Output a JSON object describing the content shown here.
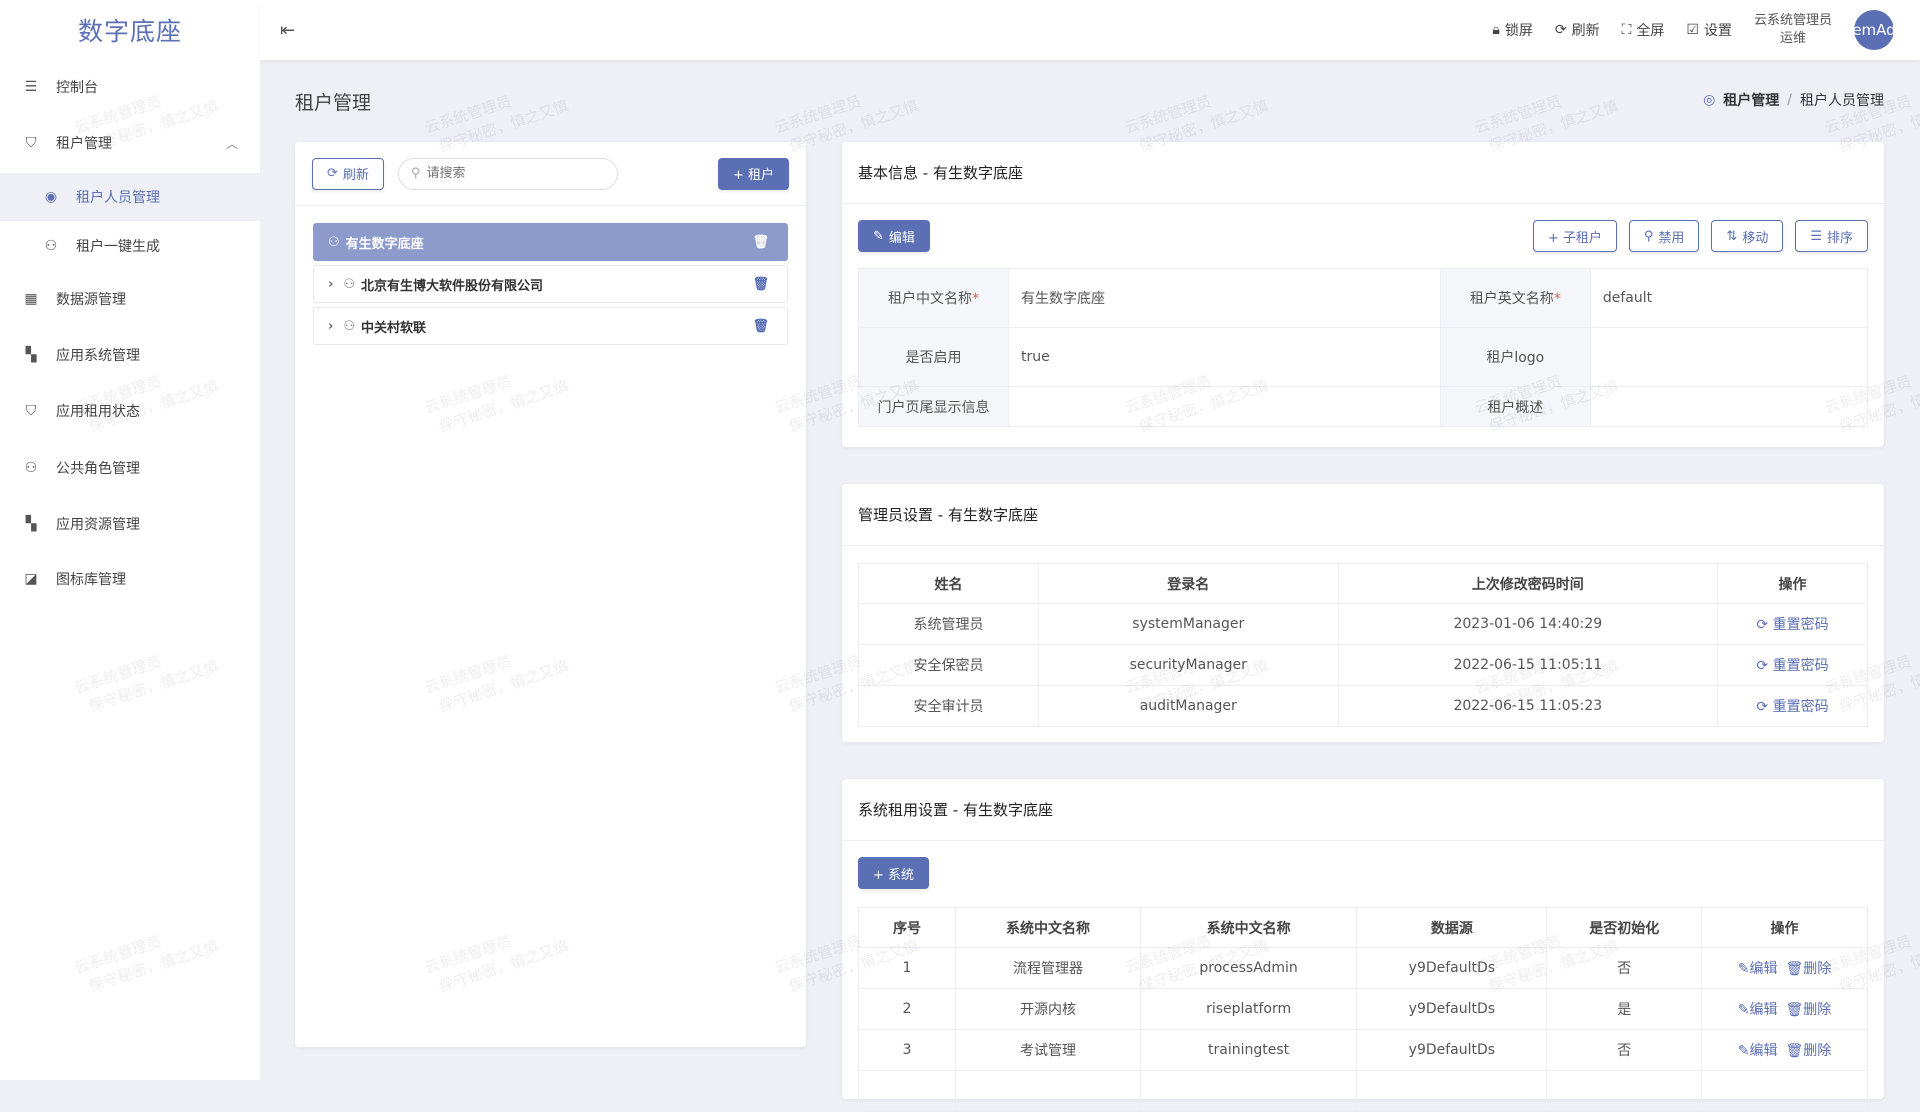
{
  "app": {
    "logo": "数字底座"
  },
  "sidebar": {
    "items": [
      {
        "label": "控制台",
        "icon": "sliders-icon"
      },
      {
        "label": "租户管理",
        "icon": "shield-user-icon"
      },
      {
        "label": "租户人员管理",
        "icon": "user-circle-icon"
      },
      {
        "label": "租户一键生成",
        "icon": "user-gear-icon"
      },
      {
        "label": "数据源管理",
        "icon": "database-icon"
      },
      {
        "label": "应用系统管理",
        "icon": "grid-icon"
      },
      {
        "label": "应用租用状态",
        "icon": "shield-check-icon"
      },
      {
        "label": "公共角色管理",
        "icon": "role-icon"
      },
      {
        "label": "应用资源管理",
        "icon": "grid-icon"
      },
      {
        "label": "图标库管理",
        "icon": "image-icon"
      }
    ]
  },
  "header": {
    "lock": "锁屏",
    "refresh": "刷新",
    "fullscreen": "全屏",
    "settings": "设置",
    "user_line1": "云系统管理员",
    "user_line2": "运维",
    "avatar": "emAd"
  },
  "page": {
    "title": "租户管理",
    "breadcrumb": [
      "租户管理",
      "租户人员管理"
    ]
  },
  "tree": {
    "refresh": "刷新",
    "search_placeholder": "请搜索",
    "add": "+ 租户",
    "nodes": [
      "有生数字底座",
      "北京有生博大软件股份有限公司",
      "中关村软联"
    ]
  },
  "basic": {
    "title": "基本信息 - 有生数字底座",
    "edit": "编辑",
    "sub_tenant": "+ 子租户",
    "disable": "禁用",
    "move": "移动",
    "sort": "排序",
    "fields": {
      "cn_name_label": "租户中文名称",
      "cn_name": "有生数字底座",
      "en_name_label": "租户英文名称",
      "en_name": "default",
      "enabled_label": "是否启用",
      "enabled": "true",
      "logo_label": "租户logo",
      "footer_label": "门户页尾显示信息",
      "desc_label": "租户概述"
    }
  },
  "admins": {
    "title": "管理员设置 - 有生数字底座",
    "columns": [
      "姓名",
      "登录名",
      "上次修改密码时间",
      "操作"
    ],
    "reset": "重置密码",
    "rows": [
      [
        "系统管理员",
        "systemManager",
        "2023-01-06 14:40:29"
      ],
      [
        "安全保密员",
        "securityManager",
        "2022-06-15 11:05:11"
      ],
      [
        "安全审计员",
        "auditManager",
        "2022-06-15 11:05:23"
      ]
    ]
  },
  "systems": {
    "title": "系统租用设置 - 有生数字底座",
    "add": "+ 系统",
    "columns": [
      "序号",
      "系统中文名称",
      "系统中文名称",
      "数据源",
      "是否初始化",
      "操作"
    ],
    "edit": "编辑",
    "delete": "删除",
    "rows": [
      [
        "1",
        "流程管理器",
        "processAdmin",
        "y9DefaultDs",
        "否"
      ],
      [
        "2",
        "开源内核",
        "riseplatform",
        "y9DefaultDs",
        "是"
      ],
      [
        "3",
        "考试管理",
        "trainingtest",
        "y9DefaultDs",
        "否"
      ]
    ]
  },
  "watermark": {
    "line1": "云系统管理员",
    "line2": "保守秘密，慎之又慎"
  },
  "colors": {
    "primary": "#5b6fb5",
    "selected": "#8c9bcb",
    "background": "#eef0f6"
  }
}
